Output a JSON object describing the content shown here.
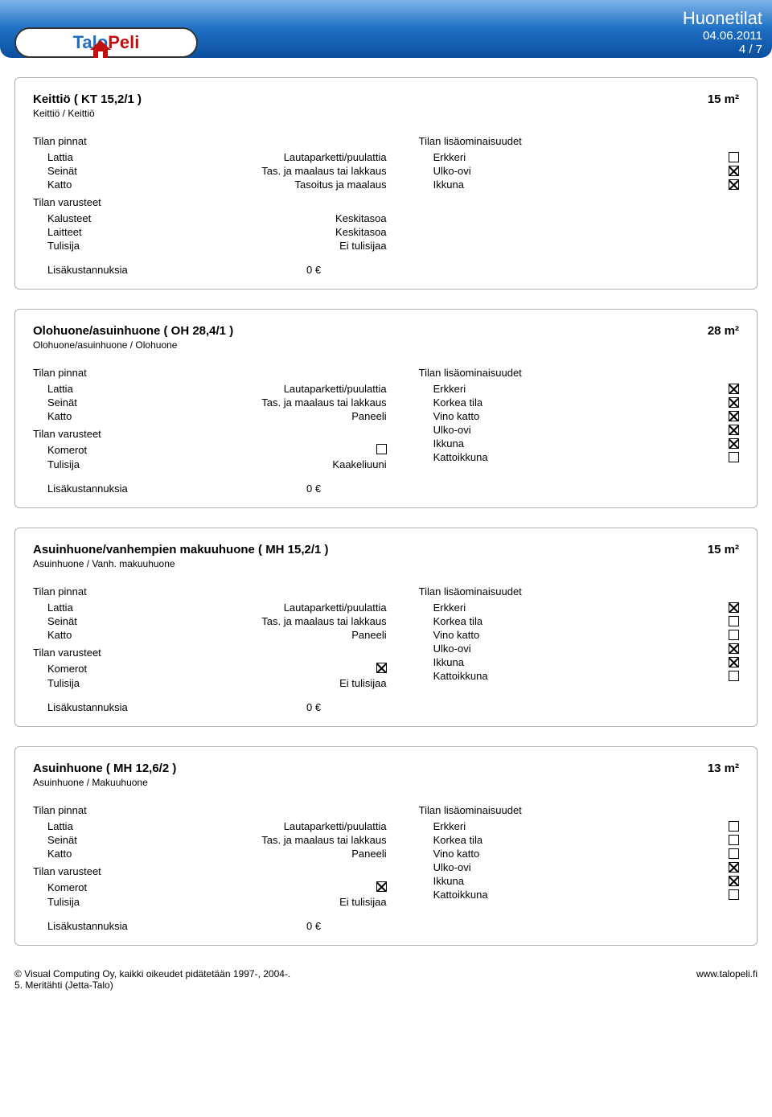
{
  "header": {
    "title": "Huonetilat",
    "date": "04.06.2011",
    "page": "4 / 7",
    "brand_a": "Talo",
    "brand_b": "Peli"
  },
  "labels": {
    "surfaces_heading": "Tilan pinnat",
    "equipment_heading": "Tilan varusteet",
    "features_heading": "Tilan lisäominaisuudet",
    "extra_costs_label": "Lisäkustannuksia",
    "extra_costs_value": "0  €",
    "floor": "Lattia",
    "walls": "Seinät",
    "ceiling": "Katto",
    "furniture": "Kalusteet",
    "appliances": "Laitteet",
    "fireplace": "Tulisija",
    "closets": "Komerot",
    "erkkeri": "Erkkeri",
    "korkea_tila": "Korkea tila",
    "vino_katto": "Vino katto",
    "ulko_ovi": "Ulko-ovi",
    "ikkuna": "Ikkuna",
    "kattoikkuna": "Kattoikkuna"
  },
  "rooms": [
    {
      "title": "Keittiö ( KT 15,2/1 )",
      "subtitle": "Keittiö / Keittiö",
      "area": "15  m²",
      "surfaces": [
        {
          "k": "Lattia",
          "v": "Lautaparketti/puulattia"
        },
        {
          "k": "Seinät",
          "v": "Tas. ja maalaus tai lakkaus"
        },
        {
          "k": "Katto",
          "v": "Tasoitus ja maalaus"
        }
      ],
      "equipment": [
        {
          "k": "Kalusteet",
          "v": "Keskitasoa",
          "is_box": false
        },
        {
          "k": "Laitteet",
          "v": "Keskitasoa",
          "is_box": false
        },
        {
          "k": "Tulisija",
          "v": "Ei tulisijaa",
          "is_box": false
        }
      ],
      "features": [
        {
          "k": "Erkkeri",
          "checked": false
        },
        {
          "k": "Ulko-ovi",
          "checked": true
        },
        {
          "k": "Ikkuna",
          "checked": true
        }
      ]
    },
    {
      "title": "Olohuone/asuinhuone ( OH 28,4/1 )",
      "subtitle": "Olohuone/asuinhuone / Olohuone",
      "area": "28  m²",
      "surfaces": [
        {
          "k": "Lattia",
          "v": "Lautaparketti/puulattia"
        },
        {
          "k": "Seinät",
          "v": "Tas. ja maalaus tai lakkaus"
        },
        {
          "k": "Katto",
          "v": "Paneeli"
        }
      ],
      "equipment": [
        {
          "k": "Komerot",
          "v": "",
          "is_box": true,
          "checked": false
        },
        {
          "k": "Tulisija",
          "v": "Kaakeliuuni",
          "is_box": false
        }
      ],
      "features": [
        {
          "k": "Erkkeri",
          "checked": true
        },
        {
          "k": "Korkea tila",
          "checked": true
        },
        {
          "k": "Vino katto",
          "checked": true
        },
        {
          "k": "Ulko-ovi",
          "checked": true
        },
        {
          "k": "Ikkuna",
          "checked": true
        },
        {
          "k": "Kattoikkuna",
          "checked": false
        }
      ]
    },
    {
      "title": "Asuinhuone/vanhempien makuuhuone ( MH 15,2/1 )",
      "subtitle": "Asuinhuone / Vanh. makuuhuone",
      "area": "15  m²",
      "surfaces": [
        {
          "k": "Lattia",
          "v": "Lautaparketti/puulattia"
        },
        {
          "k": "Seinät",
          "v": "Tas. ja maalaus tai lakkaus"
        },
        {
          "k": "Katto",
          "v": "Paneeli"
        }
      ],
      "equipment": [
        {
          "k": "Komerot",
          "v": "",
          "is_box": true,
          "checked": true
        },
        {
          "k": "Tulisija",
          "v": "Ei tulisijaa",
          "is_box": false
        }
      ],
      "features": [
        {
          "k": "Erkkeri",
          "checked": true
        },
        {
          "k": "Korkea tila",
          "checked": false
        },
        {
          "k": "Vino katto",
          "checked": false
        },
        {
          "k": "Ulko-ovi",
          "checked": true
        },
        {
          "k": "Ikkuna",
          "checked": true
        },
        {
          "k": "Kattoikkuna",
          "checked": false
        }
      ]
    },
    {
      "title": "Asuinhuone ( MH 12,6/2 )",
      "subtitle": "Asuinhuone / Makuuhuone",
      "area": "13  m²",
      "surfaces": [
        {
          "k": "Lattia",
          "v": "Lautaparketti/puulattia"
        },
        {
          "k": "Seinät",
          "v": "Tas. ja maalaus tai lakkaus"
        },
        {
          "k": "Katto",
          "v": "Paneeli"
        }
      ],
      "equipment": [
        {
          "k": "Komerot",
          "v": "",
          "is_box": true,
          "checked": true
        },
        {
          "k": "Tulisija",
          "v": "Ei tulisijaa",
          "is_box": false
        }
      ],
      "features": [
        {
          "k": "Erkkeri",
          "checked": false
        },
        {
          "k": "Korkea tila",
          "checked": false
        },
        {
          "k": "Vino katto",
          "checked": false
        },
        {
          "k": "Ulko-ovi",
          "checked": true
        },
        {
          "k": "Ikkuna",
          "checked": true
        },
        {
          "k": "Kattoikkuna",
          "checked": false
        }
      ]
    }
  ],
  "footer": {
    "left1": "© Visual Computing Oy, kaikki oikeudet pidätetään 1997-, 2004-.",
    "left2": "5. Meritähti (Jetta-Talo)",
    "right": "www.talopeli.fi"
  }
}
